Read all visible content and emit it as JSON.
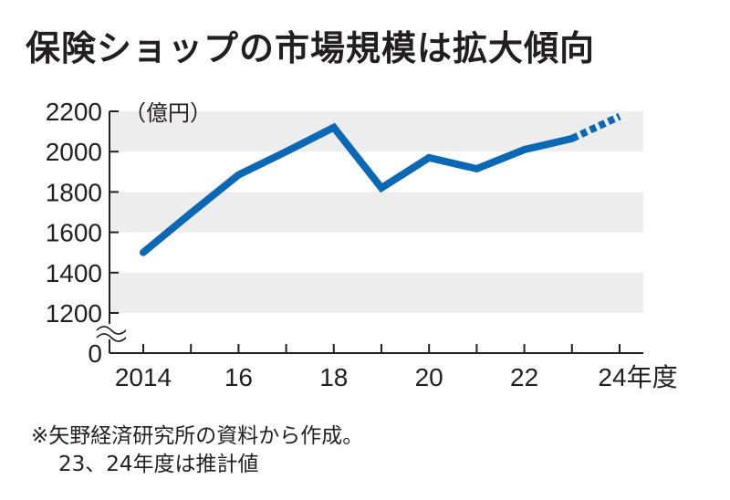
{
  "title": "保険ショップの市場規模は拡大傾向",
  "notes": [
    "※矢野経済研究所の資料から作成。",
    "23、24年度は推計値"
  ],
  "colors": {
    "line": "#0a68b4",
    "band": "#ededed",
    "axis": "#231f20"
  },
  "chart_data": {
    "type": "line",
    "title": "保険ショップの市場規模は拡大傾向",
    "unit_label": "（億円）",
    "x": [
      2014,
      2015,
      2016,
      2017,
      2018,
      2019,
      2020,
      2021,
      2022,
      2023,
      2024
    ],
    "x_tick_labels": [
      "2014",
      "16",
      "18",
      "20",
      "22",
      "24年度"
    ],
    "x_tick_label_years": [
      2014,
      2016,
      2018,
      2020,
      2022,
      2024
    ],
    "y_tick_labels": [
      "2200",
      "2000",
      "1800",
      "1600",
      "1400",
      "1200",
      "0"
    ],
    "y_tick_values": [
      2200,
      2000,
      1800,
      1600,
      1400,
      1200
    ],
    "ylim": [
      1200,
      2200
    ],
    "axis_break": true,
    "series": [
      {
        "name": "市場規模",
        "values": [
          1500,
          1695,
          1885,
          2000,
          2120,
          1820,
          1970,
          1915,
          2010,
          2065,
          2175
        ],
        "estimated_from": 2023
      }
    ],
    "grid": "alternating bands"
  }
}
